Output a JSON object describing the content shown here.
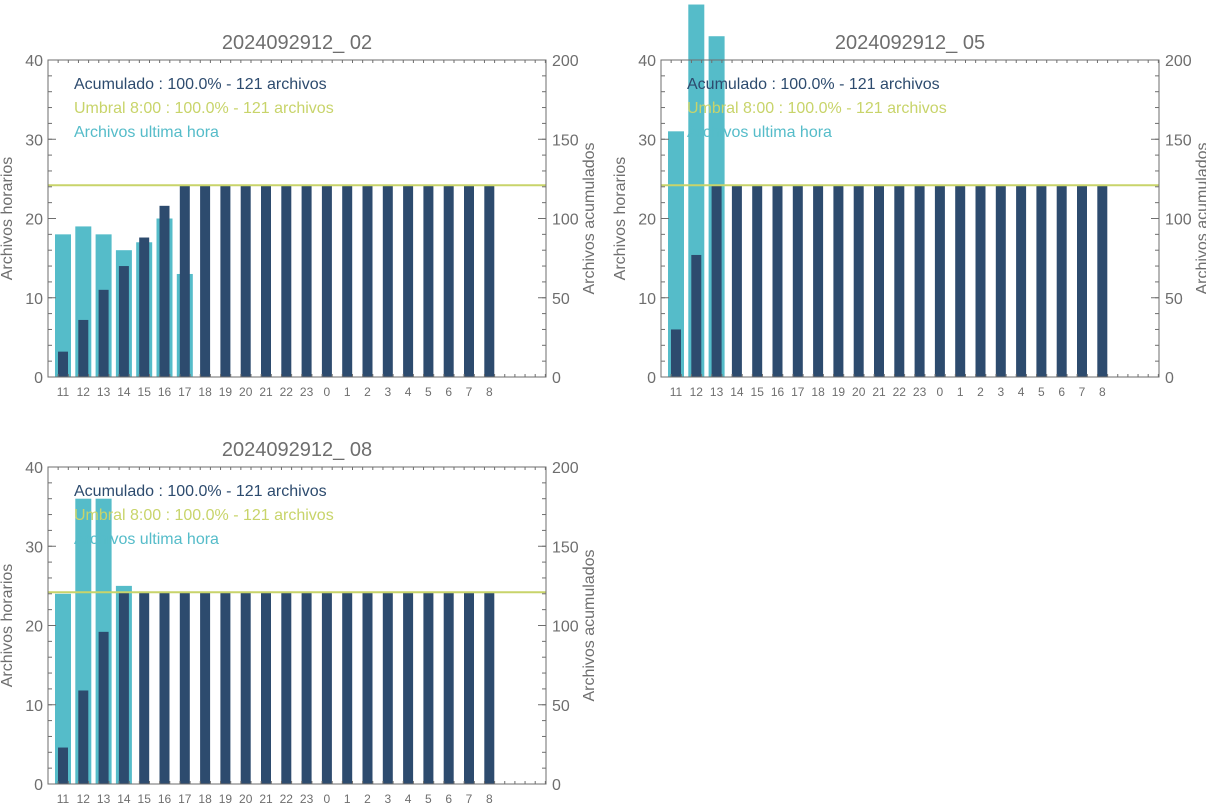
{
  "colors": {
    "hourly": "#55bcc9",
    "cumulative": "#2d4b6e",
    "threshold": "#c8d46a",
    "axis": "#6e6e6e"
  },
  "chart_data": [
    {
      "type": "bar",
      "title": "2024092912_ 02",
      "ylabel_left": "Archivos horarios",
      "ylabel_right": "Archivos acumulados",
      "ylim_left": [
        0,
        40
      ],
      "ylim_right": [
        0,
        200
      ],
      "categories": [
        "11",
        "12",
        "13",
        "14",
        "15",
        "16",
        "17",
        "18",
        "19",
        "20",
        "21",
        "22",
        "23",
        "0",
        "1",
        "2",
        "3",
        "4",
        "5",
        "6",
        "7",
        "8"
      ],
      "legend": [
        {
          "text": "Acumulado : 100.0% - 121 archivos",
          "color": "#2d4b6e"
        },
        {
          "text": "Umbral 8:00 : 100.0% - 121 archivos",
          "color": "#c8d46a"
        },
        {
          "text": "Archivos ultima hora",
          "color": "#55bcc9"
        }
      ],
      "threshold": 121,
      "hourly": [
        18,
        19,
        18,
        16,
        17,
        20,
        13,
        0,
        0,
        0,
        0,
        0,
        0,
        0,
        0,
        0,
        0,
        0,
        0,
        0,
        0,
        0
      ],
      "cumulative": [
        16,
        36,
        55,
        70,
        88,
        108,
        121,
        121,
        121,
        121,
        121,
        121,
        121,
        121,
        121,
        121,
        121,
        121,
        121,
        121,
        121,
        121
      ]
    },
    {
      "type": "bar",
      "title": "2024092912_ 05",
      "ylabel_left": "Archivos horarios",
      "ylabel_right": "Archivos acumulados",
      "ylim_left": [
        0,
        40
      ],
      "ylim_right": [
        0,
        200
      ],
      "categories": [
        "11",
        "12",
        "13",
        "14",
        "15",
        "16",
        "17",
        "18",
        "19",
        "20",
        "21",
        "22",
        "23",
        "0",
        "1",
        "2",
        "3",
        "4",
        "5",
        "6",
        "7",
        "8"
      ],
      "legend": [
        {
          "text": "Acumulado : 100.0% - 121 archivos",
          "color": "#2d4b6e"
        },
        {
          "text": "Umbral 8:00 : 100.0% - 121 archivos",
          "color": "#c8d46a"
        },
        {
          "text": "Archivos ultima hora",
          "color": "#55bcc9"
        }
      ],
      "threshold": 121,
      "hourly": [
        31,
        47,
        43,
        0,
        0,
        0,
        0,
        0,
        0,
        0,
        0,
        0,
        0,
        0,
        0,
        0,
        0,
        0,
        0,
        0,
        0,
        0
      ],
      "cumulative": [
        30,
        77,
        121,
        121,
        121,
        121,
        121,
        121,
        121,
        121,
        121,
        121,
        121,
        121,
        121,
        121,
        121,
        121,
        121,
        121,
        121,
        121
      ]
    },
    {
      "type": "bar",
      "title": "2024092912_ 08",
      "ylabel_left": "Archivos horarios",
      "ylabel_right": "Archivos acumulados",
      "ylim_left": [
        0,
        40
      ],
      "ylim_right": [
        0,
        200
      ],
      "categories": [
        "11",
        "12",
        "13",
        "14",
        "15",
        "16",
        "17",
        "18",
        "19",
        "20",
        "21",
        "22",
        "23",
        "0",
        "1",
        "2",
        "3",
        "4",
        "5",
        "6",
        "7",
        "8"
      ],
      "legend": [
        {
          "text": "Acumulado : 100.0% - 121 archivos",
          "color": "#2d4b6e"
        },
        {
          "text": "Umbral 8:00 : 100.0% - 121 archivos",
          "color": "#c8d46a"
        },
        {
          "text": "Archivos ultima hora",
          "color": "#55bcc9"
        }
      ],
      "threshold": 121,
      "hourly": [
        24,
        36,
        36,
        25,
        0,
        0,
        0,
        0,
        0,
        0,
        0,
        0,
        0,
        0,
        0,
        0,
        0,
        0,
        0,
        0,
        0,
        0
      ],
      "cumulative": [
        23,
        59,
        96,
        121,
        121,
        121,
        121,
        121,
        121,
        121,
        121,
        121,
        121,
        121,
        121,
        121,
        121,
        121,
        121,
        121,
        121,
        121
      ]
    }
  ]
}
